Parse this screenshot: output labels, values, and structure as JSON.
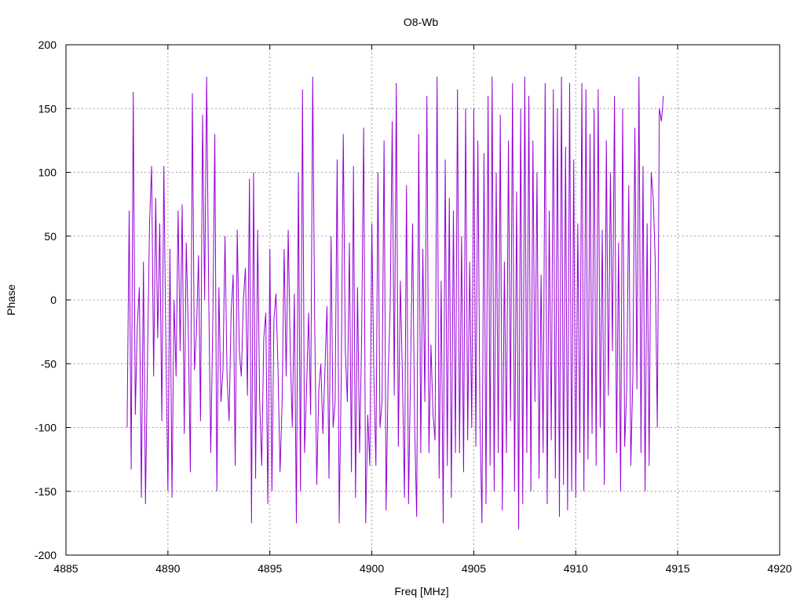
{
  "chart_data": {
    "type": "line",
    "title": "O8-Wb",
    "xlabel": "Freq [MHz]",
    "ylabel": "Phase",
    "xlim": [
      4885,
      4920
    ],
    "ylim": [
      -200,
      200
    ],
    "x_ticks": [
      4885,
      4890,
      4895,
      4900,
      4905,
      4910,
      4915,
      4920
    ],
    "y_ticks": [
      -200,
      -150,
      -100,
      -50,
      0,
      50,
      100,
      150,
      200
    ],
    "grid": true,
    "legend": "none",
    "series_color": "#9400d3",
    "series": [
      {
        "x_start": 4888.0,
        "x_step": 0.1,
        "values": [
          -100,
          70,
          -133,
          163,
          -90,
          -20,
          10,
          -155,
          30,
          -160,
          -45,
          60,
          105,
          -60,
          80,
          -30,
          60,
          -95,
          105,
          -35,
          -150,
          40,
          -155,
          0,
          -60,
          70,
          -40,
          75,
          -105,
          45,
          -25,
          -135,
          162,
          -55,
          -25,
          35,
          -95,
          145,
          0,
          175,
          5,
          -120,
          -20,
          130,
          -150,
          10,
          -80,
          -55,
          50,
          -60,
          -95,
          -10,
          20,
          -130,
          55,
          -40,
          -60,
          0,
          25,
          -75,
          95,
          -175,
          100,
          -140,
          55,
          -80,
          -130,
          -30,
          -10,
          -160,
          40,
          -150,
          -15,
          5,
          -55,
          -135,
          -80,
          40,
          -60,
          55,
          -40,
          -100,
          5,
          -175,
          100,
          -150,
          165,
          -120,
          -70,
          -10,
          -90,
          175,
          -20,
          -145,
          -70,
          -50,
          -105,
          -55,
          -5,
          -140,
          50,
          -100,
          -80,
          110,
          -175,
          -60,
          130,
          -40,
          -80,
          45,
          -135,
          105,
          -155,
          10,
          -120,
          -30,
          135,
          -175,
          -90,
          -130,
          60,
          -60,
          -130,
          100,
          -100,
          -80,
          125,
          -165,
          -60,
          -5,
          140,
          -75,
          170,
          -115,
          15,
          -60,
          -155,
          90,
          -160,
          -55,
          60,
          -100,
          -170,
          130,
          -120,
          40,
          -80,
          160,
          -120,
          -35,
          -90,
          -110,
          175,
          -140,
          15,
          -175,
          110,
          -130,
          80,
          -155,
          70,
          -120,
          165,
          -120,
          50,
          -135,
          150,
          -110,
          30,
          -100,
          150,
          -115,
          125,
          -90,
          -175,
          115,
          -160,
          160,
          -130,
          175,
          -150,
          100,
          -120,
          145,
          -165,
          30,
          -120,
          125,
          -95,
          170,
          -150,
          85,
          -180,
          150,
          -160,
          175,
          -120,
          160,
          -150,
          125,
          -80,
          100,
          -140,
          20,
          -120,
          170,
          -160,
          70,
          -110,
          165,
          -140,
          150,
          -170,
          175,
          -145,
          120,
          -165,
          170,
          -150,
          110,
          -155,
          60,
          -120,
          170,
          -150,
          165,
          -125,
          130,
          -105,
          150,
          -130,
          165,
          -100,
          55,
          -145,
          125,
          -75,
          100,
          -40,
          160,
          -120,
          45,
          -150,
          150,
          -115,
          -70,
          90,
          -130,
          -60,
          135,
          -70,
          175,
          -120,
          105,
          -150,
          60,
          -130,
          100,
          80,
          30,
          -100,
          150,
          140,
          160
        ]
      }
    ]
  }
}
